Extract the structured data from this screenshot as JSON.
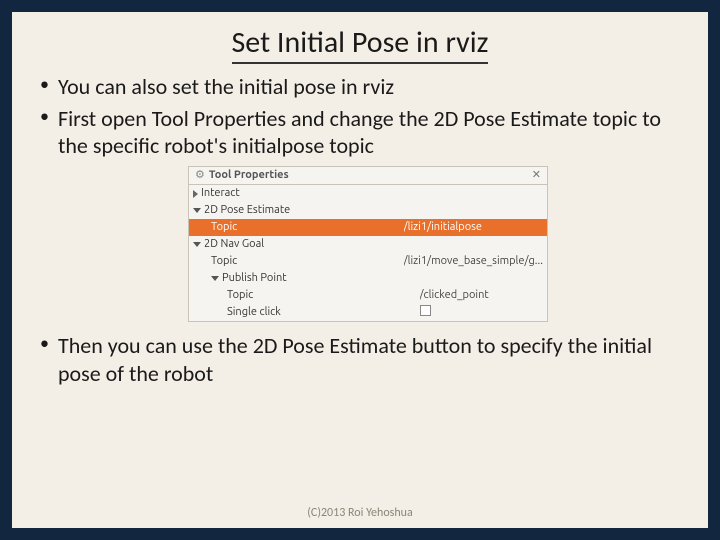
{
  "slide": {
    "title": "Set Initial Pose in rviz",
    "bullets": {
      "b1": "You can also set the initial pose in rviz",
      "b2": "First open Tool Properties and change the 2D Pose Estimate topic to the specific robot's initialpose topic",
      "b3": "Then you can use the 2D Pose Estimate button to specify the initial pose of the robot"
    },
    "footer": "(C)2013 Roi Yehoshua"
  },
  "panel": {
    "header": "Tool Properties",
    "rows": {
      "interact": "Interact",
      "pose_est": "2D Pose Estimate",
      "pose_est_topic_label": "Topic",
      "pose_est_topic_value": "/lizi1/initialpose",
      "nav_goal": "2D Nav Goal",
      "nav_goal_topic_label": "Topic",
      "nav_goal_topic_value": "/lizi1/move_base_simple/g...",
      "publish_point": "Publish Point",
      "publish_topic_label": "Topic",
      "publish_topic_value": "/clicked_point",
      "single_click_label": "Single click"
    },
    "colors": {
      "highlight_bg": "#e8702a",
      "highlight_fg": "#ffffff",
      "panel_bg": "#f6f4f0",
      "panel_border": "#c9c3b8"
    }
  }
}
